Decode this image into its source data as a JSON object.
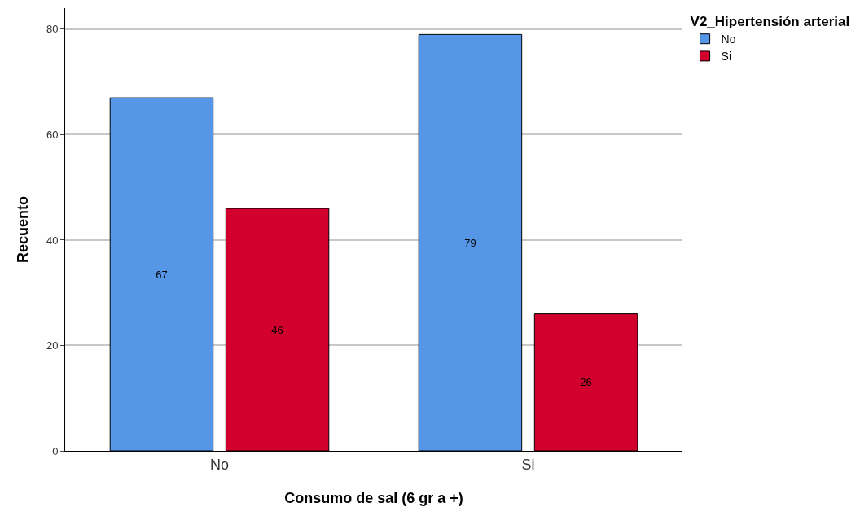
{
  "chart_data": {
    "type": "bar",
    "xlabel": "Consumo de sal (6 gr a +)",
    "ylabel": "Recuento",
    "legend_title": "V2_Hipertensión arterial",
    "categories": [
      "No",
      "Si"
    ],
    "series": [
      {
        "name": "No",
        "color": "#5596e6",
        "values": [
          67,
          79
        ]
      },
      {
        "name": "Si",
        "color": "#d2002d",
        "values": [
          46,
          26
        ]
      }
    ],
    "ylim": [
      0,
      84
    ],
    "yticks": [
      0,
      20,
      40,
      60,
      80
    ],
    "grid": "y",
    "legend": "top right",
    "data_labels": true
  }
}
